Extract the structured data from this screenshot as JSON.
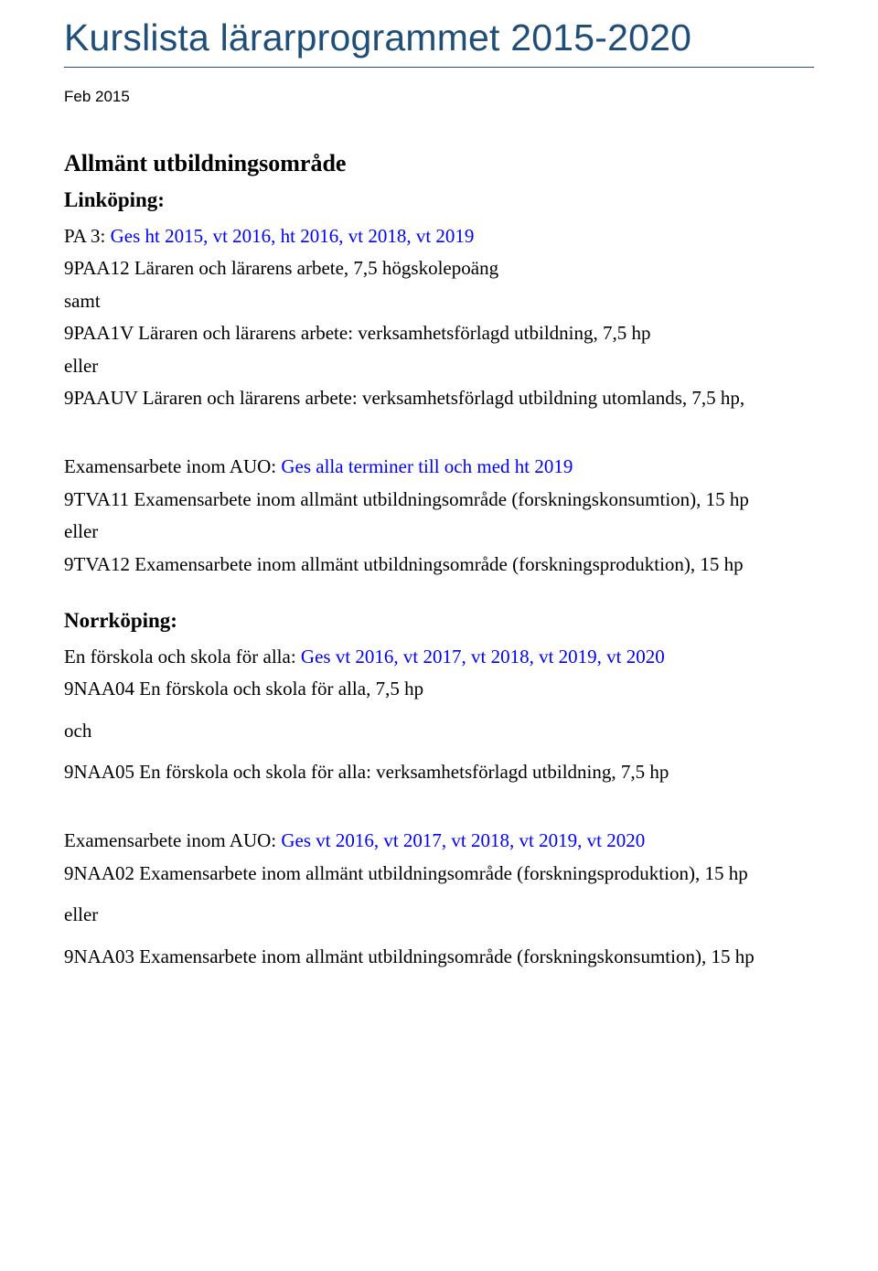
{
  "title": "Kurslista lärarprogrammet 2015-2020",
  "datestamp": "Feb 2015",
  "sec1": {
    "heading": "Allmänt utbildningsområde",
    "sub1": "Linköping:",
    "pa3_label": "PA 3: ",
    "pa3_blue": "Ges ht 2015, vt 2016, ht 2016, vt 2018, vt 2019",
    "c1": "9PAA12 Läraren och lärarens arbete, 7,5 högskolepoäng",
    "w_samt": "samt",
    "c2": "9PAA1V Läraren och lärarens arbete: verksamhetsförlagd utbildning, 7,5 hp",
    "w_eller1": "eller",
    "c3": "9PAAUV Läraren och lärarens arbete: verksamhetsförlagd utbildning utomlands, 7,5 hp,",
    "exam_label": "Examensarbete inom AUO: ",
    "exam_blue": "Ges alla terminer till och med ht 2019",
    "c4": "9TVA11 Examensarbete inom allmänt utbildningsområde (forskningskonsumtion), 15 hp",
    "w_eller2": "eller",
    "c5": "9TVA12 Examensarbete inom allmänt utbildningsområde (forskningsproduktion), 15 hp",
    "sub2": "Norrköping:",
    "fsk_label": "En förskola och skola för alla: ",
    "fsk_blue": "Ges vt 2016, vt 2017, vt 2018, vt 2019, vt 2020",
    "c6": "9NAA04 En förskola och skola för alla, 7,5 hp",
    "w_och": "och",
    "c7": "9NAA05 En förskola och skola för alla: verksamhetsförlagd utbildning, 7,5 hp",
    "exam2_label": "Examensarbete inom AUO: ",
    "exam2_blue": "Ges vt 2016, vt 2017, vt 2018, vt 2019, vt 2020",
    "c8": "9NAA02 Examensarbete inom allmänt utbildningsområde (forskningsproduktion), 15 hp",
    "w_eller3": "eller",
    "c9": "9NAA03 Examensarbete inom allmänt utbildningsområde (forskningskonsumtion), 15 hp"
  }
}
